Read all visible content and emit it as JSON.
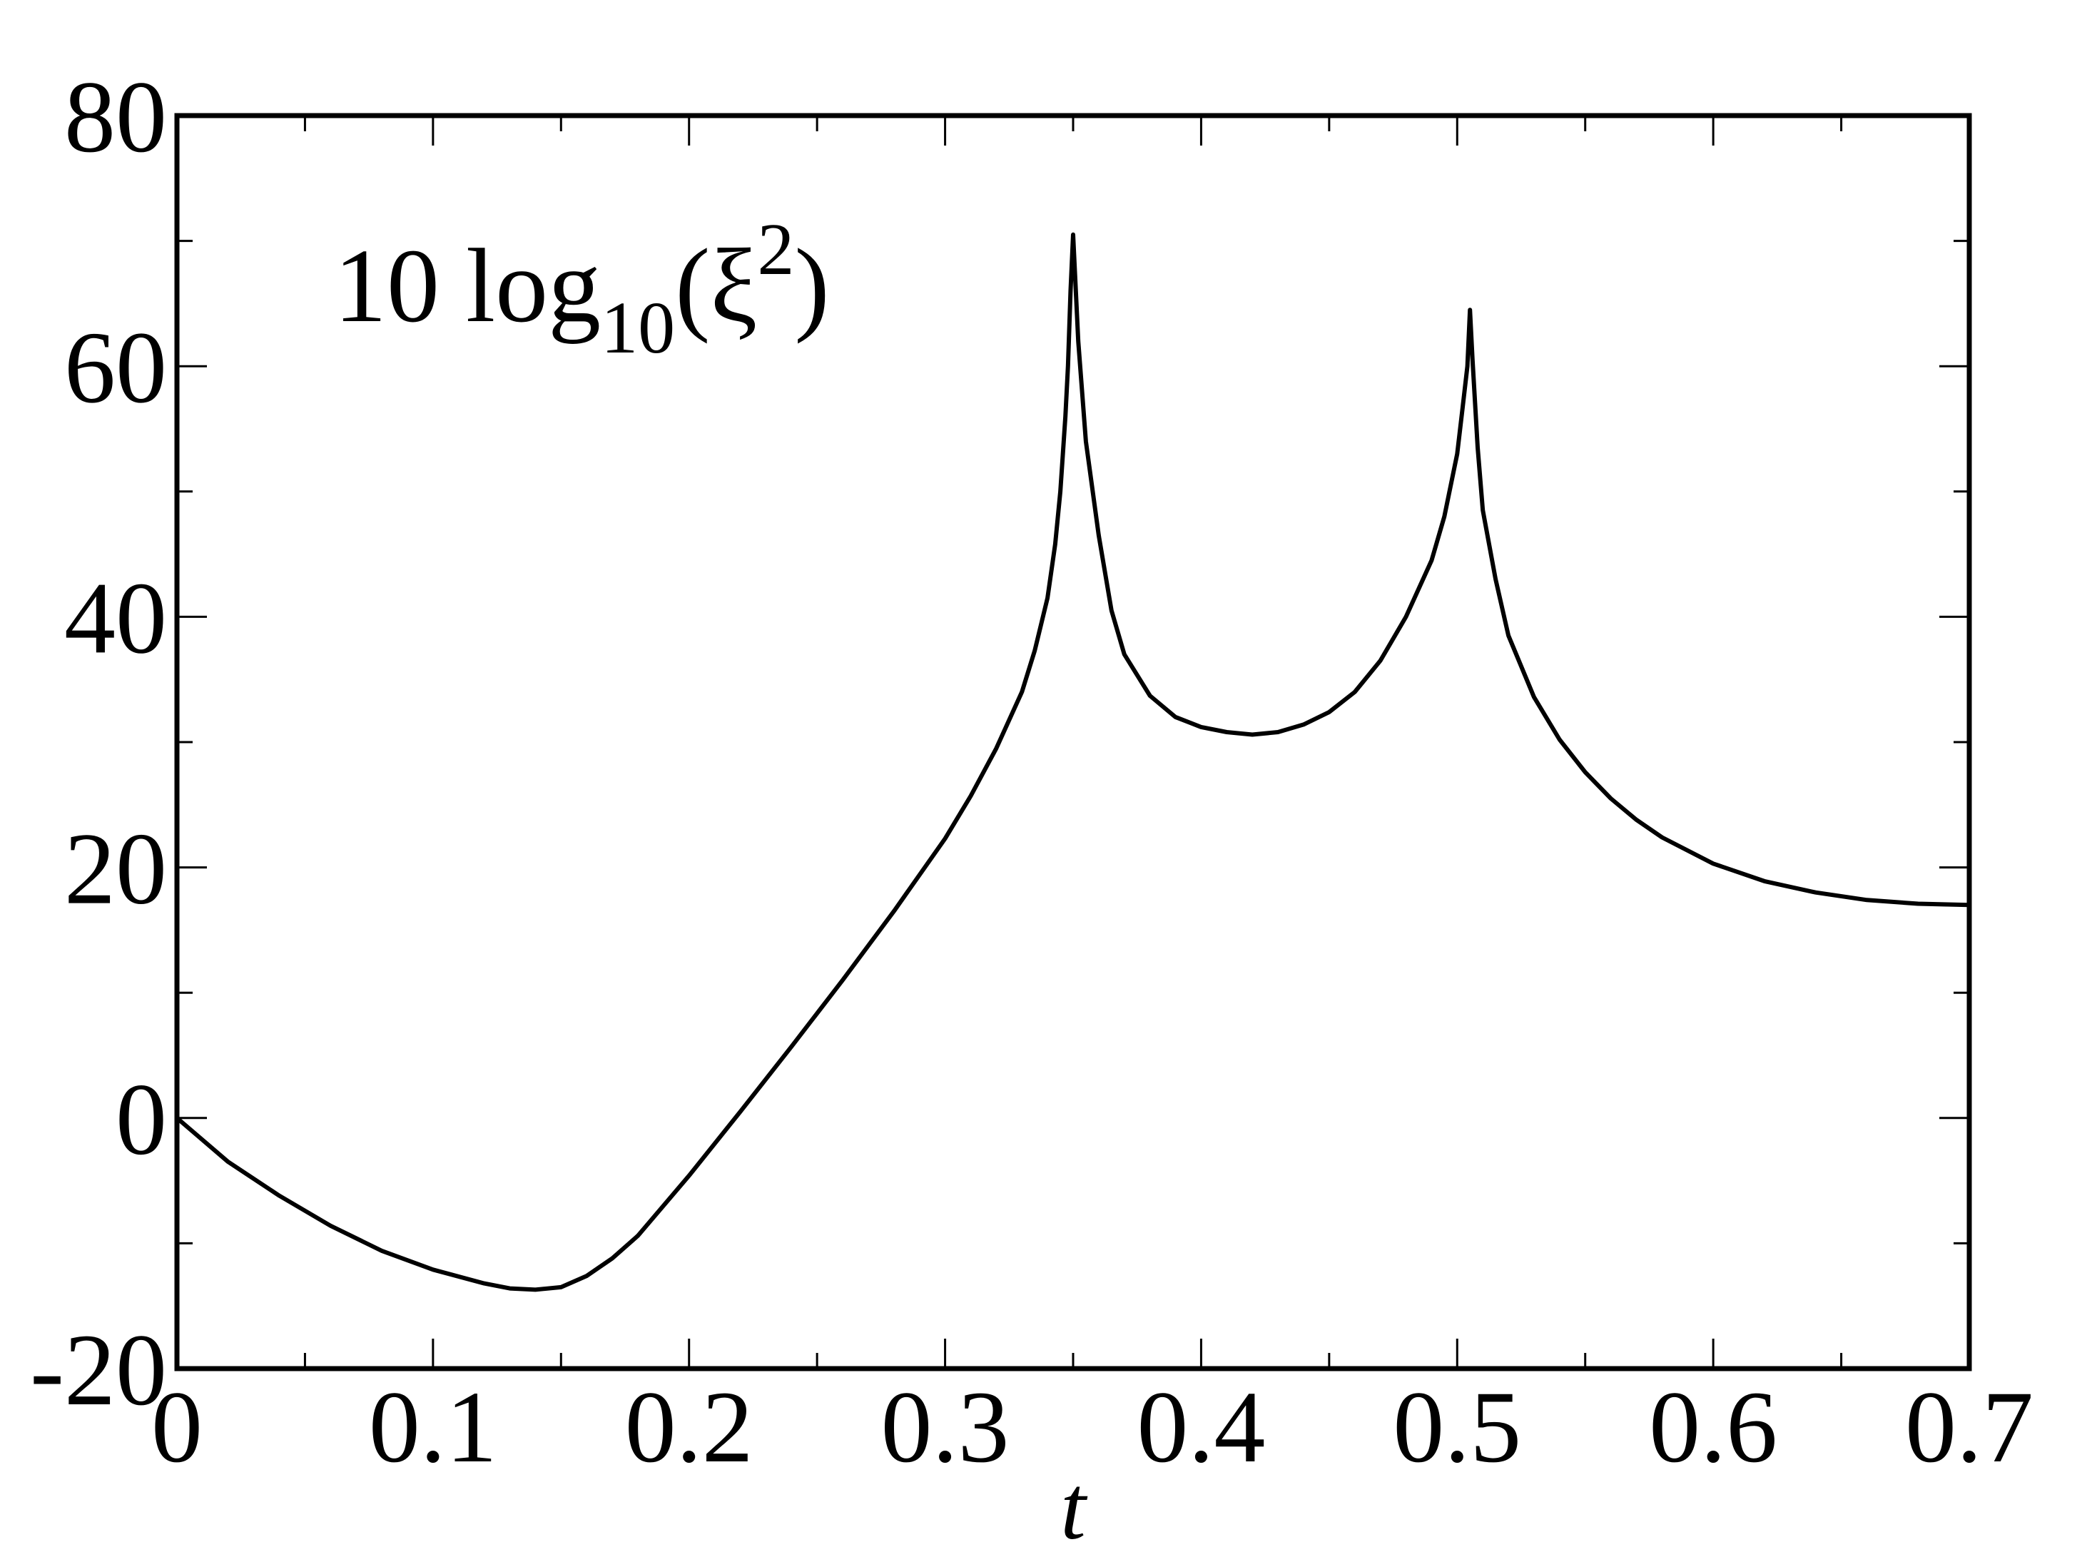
{
  "chart_data": {
    "type": "line",
    "xlabel": "t",
    "ylabel": "",
    "xlim": [
      0,
      0.7
    ],
    "ylim": [
      -20,
      80
    ],
    "xticks": [
      "0",
      "0.1",
      "0.2",
      "0.3",
      "0.4",
      "0.5",
      "0.6",
      "0.7"
    ],
    "yticks": [
      "-20",
      "0",
      "20",
      "40",
      "60",
      "80"
    ],
    "grid": false,
    "annotation": {
      "prefix": "10 log",
      "subscript": "10",
      "open": "(ξ",
      "superscript": "2",
      "close": ")"
    },
    "series": [
      {
        "color": "#000000",
        "x": [
          0,
          0.02,
          0.04,
          0.06,
          0.08,
          0.1,
          0.12,
          0.13,
          0.14,
          0.15,
          0.16,
          0.17,
          0.18,
          0.2,
          0.22,
          0.24,
          0.26,
          0.28,
          0.3,
          0.31,
          0.32,
          0.33,
          0.335,
          0.34,
          0.343,
          0.345,
          0.347,
          0.348,
          0.349,
          0.35,
          0.352,
          0.355,
          0.36,
          0.365,
          0.37,
          0.38,
          0.39,
          0.4,
          0.41,
          0.42,
          0.43,
          0.44,
          0.45,
          0.46,
          0.47,
          0.48,
          0.49,
          0.495,
          0.5,
          0.502,
          0.504,
          0.505,
          0.506,
          0.508,
          0.51,
          0.515,
          0.52,
          0.53,
          0.54,
          0.55,
          0.56,
          0.57,
          0.58,
          0.6,
          0.62,
          0.64,
          0.66,
          0.68,
          0.7
        ],
        "y": [
          0,
          -3.5,
          -6.2,
          -8.6,
          -10.6,
          -12.1,
          -13.2,
          -13.6,
          -13.7,
          -13.5,
          -12.6,
          -11.2,
          -9.4,
          -4.6,
          0.5,
          5.7,
          11.0,
          16.5,
          22.3,
          25.7,
          29.5,
          34.0,
          37.3,
          41.5,
          45.8,
          50.0,
          56.0,
          60.0,
          66.0,
          70.5,
          62.0,
          54.0,
          46.5,
          40.5,
          37.0,
          33.7,
          32.0,
          31.2,
          30.8,
          30.6,
          30.8,
          31.4,
          32.4,
          34.0,
          36.5,
          40.0,
          44.5,
          48.0,
          53.0,
          56.5,
          60.0,
          64.5,
          60.5,
          53.5,
          48.5,
          43.0,
          38.5,
          33.6,
          30.2,
          27.6,
          25.5,
          23.8,
          22.4,
          20.3,
          18.9,
          18.0,
          17.4,
          17.1,
          17.0
        ]
      }
    ]
  }
}
